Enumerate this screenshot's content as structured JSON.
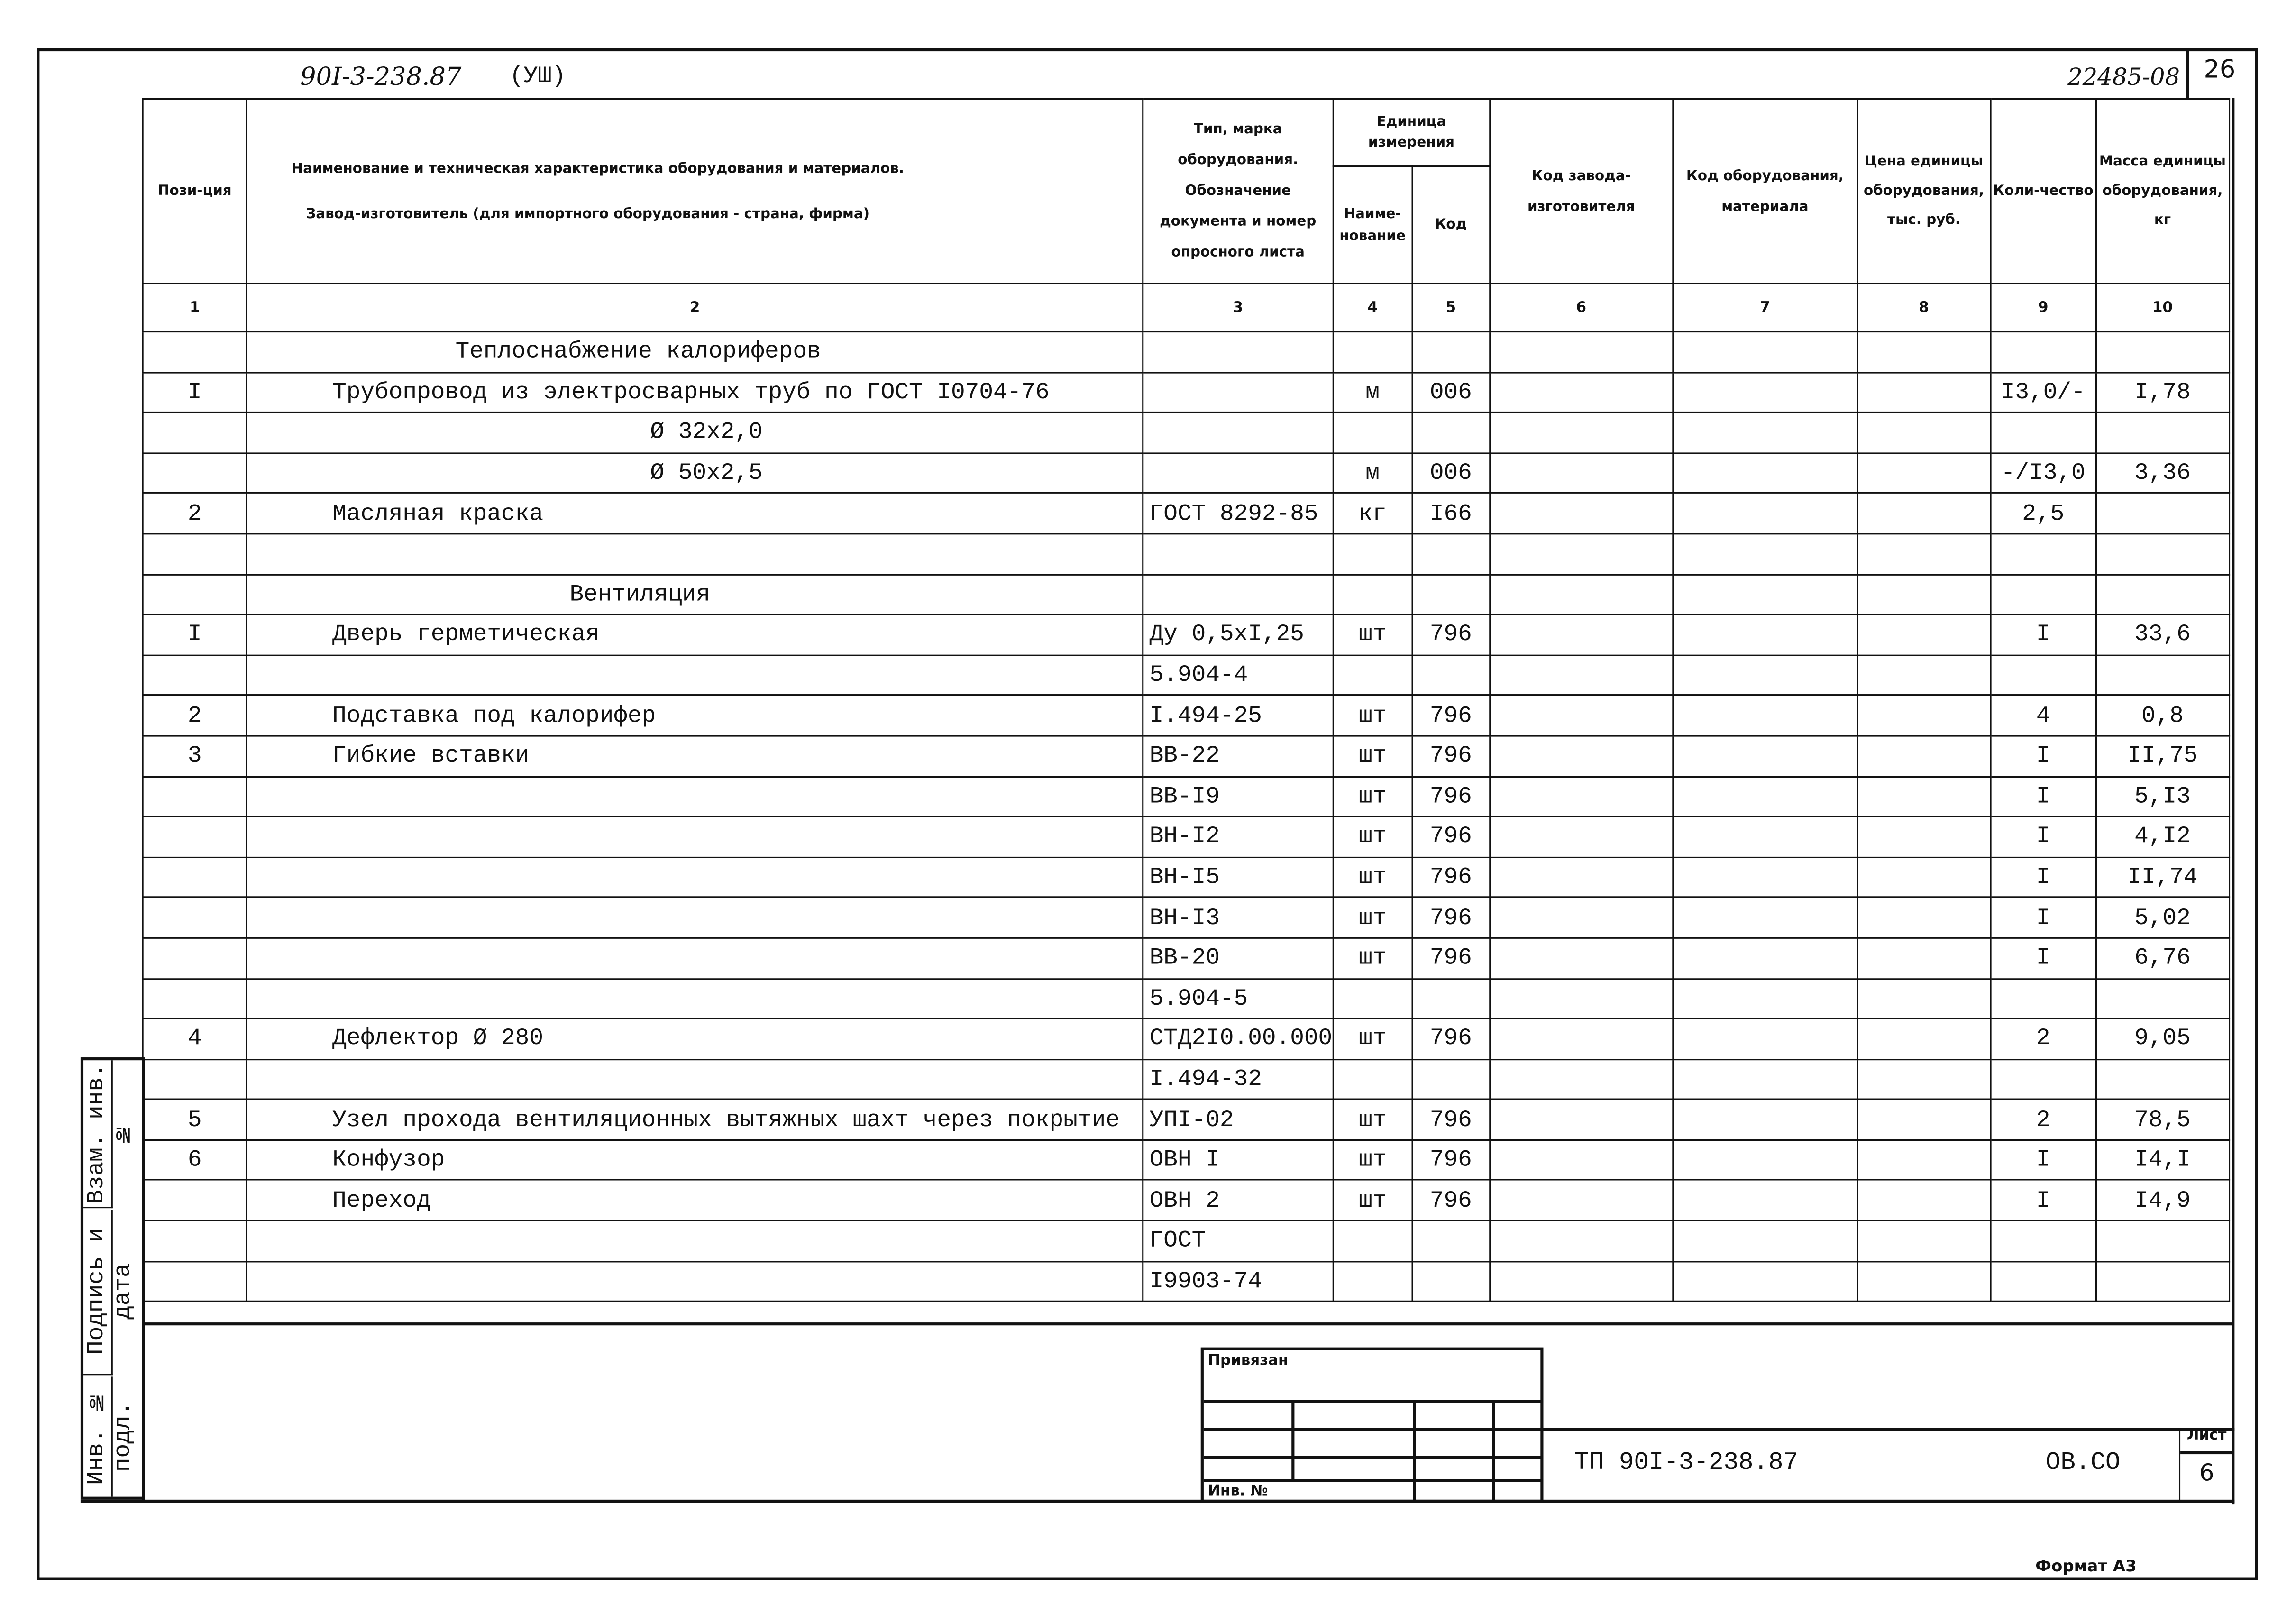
{
  "header": {
    "doc_code_handwritten": "90I-3-238.87",
    "doc_suffix": "(УШ)",
    "inventory_handwritten": "22485-08",
    "sheet_page": "26"
  },
  "table": {
    "columns": [
      {
        "label": "Пози-ция"
      },
      {
        "label": "Наименование и техническая характеристика оборудования и материалов.",
        "label2": "Завод-изготовитель (для импортного оборудования - страна, фирма)"
      },
      {
        "label": "Тип, марка оборудования. Обозначение документа и номер опросного листа"
      },
      {
        "group": "Единица измерения",
        "label": "Наиме-нование"
      },
      {
        "label": "Код"
      },
      {
        "label": "Код завода-изготовителя"
      },
      {
        "label": "Код оборудования, материала"
      },
      {
        "label": "Цена единицы оборудования, тыс. руб."
      },
      {
        "label": "Коли-чество"
      },
      {
        "label": "Масса единицы оборудования, кг"
      }
    ],
    "column_numbers": [
      "1",
      "2",
      "3",
      "4",
      "5",
      "6",
      "7",
      "8",
      "9",
      "10"
    ],
    "rows": [
      [
        "",
        "Теплоснабжение калориферов",
        "",
        "",
        "",
        "",
        "",
        "",
        "",
        ""
      ],
      [
        "I",
        "Трубопровод из электросварных труб по ГОСТ I0704-76",
        "",
        "м",
        "006",
        "",
        "",
        "",
        "I3,0/-",
        "I,78"
      ],
      [
        "",
        "Ø 32x2,0",
        "",
        "",
        "",
        "",
        "",
        "",
        "",
        ""
      ],
      [
        "",
        "Ø 50x2,5",
        "",
        "м",
        "006",
        "",
        "",
        "",
        "-/I3,0",
        "3,36"
      ],
      [
        "2",
        "Масляная краска",
        "ГОСТ 8292-85",
        "кг",
        "I66",
        "",
        "",
        "",
        "2,5",
        ""
      ],
      [
        "",
        "",
        "",
        "",
        "",
        "",
        "",
        "",
        "",
        ""
      ],
      [
        "",
        "Вентиляция",
        "",
        "",
        "",
        "",
        "",
        "",
        "",
        ""
      ],
      [
        "I",
        "Дверь герметическая",
        "Ду 0,5xI,25",
        "шт",
        "796",
        "",
        "",
        "",
        "I",
        "33,6"
      ],
      [
        "",
        "",
        "5.904-4",
        "",
        "",
        "",
        "",
        "",
        "",
        ""
      ],
      [
        "2",
        "Подставка под калорифер",
        "I.494-25",
        "шт",
        "796",
        "",
        "",
        "",
        "4",
        "0,8"
      ],
      [
        "3",
        "Гибкие вставки",
        "ВВ-22",
        "шт",
        "796",
        "",
        "",
        "",
        "I",
        "II,75"
      ],
      [
        "",
        "",
        "ВВ-I9",
        "шт",
        "796",
        "",
        "",
        "",
        "I",
        "5,I3"
      ],
      [
        "",
        "",
        "ВН-I2",
        "шт",
        "796",
        "",
        "",
        "",
        "I",
        "4,I2"
      ],
      [
        "",
        "",
        "ВН-I5",
        "шт",
        "796",
        "",
        "",
        "",
        "I",
        "II,74"
      ],
      [
        "",
        "",
        "ВН-I3",
        "шт",
        "796",
        "",
        "",
        "",
        "I",
        "5,02"
      ],
      [
        "",
        "",
        "ВВ-20",
        "шт",
        "796",
        "",
        "",
        "",
        "I",
        "6,76"
      ],
      [
        "",
        "",
        "5.904-5",
        "",
        "",
        "",
        "",
        "",
        "",
        ""
      ],
      [
        "4",
        "Дефлектор Ø 280",
        "СТД2I0.00.000",
        "шт",
        "796",
        "",
        "",
        "",
        "2",
        "9,05"
      ],
      [
        "",
        "",
        "I.494-32",
        "",
        "",
        "",
        "",
        "",
        "",
        ""
      ],
      [
        "5",
        "Узел прохода вентиляционных вытяжных шахт через покрытие",
        "УПI-02",
        "шт",
        "796",
        "",
        "",
        "",
        "2",
        "78,5"
      ],
      [
        "6",
        "Конфузор",
        "ОВН I",
        "шт",
        "796",
        "",
        "",
        "",
        "I",
        "I4,I"
      ],
      [
        "",
        "Переход",
        "ОВН 2",
        "шт",
        "796",
        "",
        "",
        "",
        "I",
        "I4,9"
      ],
      [
        "",
        "",
        "ГОСТ",
        "",
        "",
        "",
        "",
        "",
        "",
        ""
      ],
      [
        "",
        "",
        "I9903-74",
        "",
        "",
        "",
        "",
        "",
        "",
        ""
      ]
    ]
  },
  "side_stamp": {
    "field1": "Взам. инв. №",
    "field2": "Подпись и дата",
    "field3": "Инв. № подл."
  },
  "title_block": {
    "linked_label": "Привязан",
    "inv_label": "Инв. №",
    "doc_number": "ТП 90I-3-238.87",
    "doc_section": "ОВ.СО",
    "sheet_label": "Лист",
    "sheet_number": "6"
  },
  "footer": {
    "format": "Формат А3"
  }
}
